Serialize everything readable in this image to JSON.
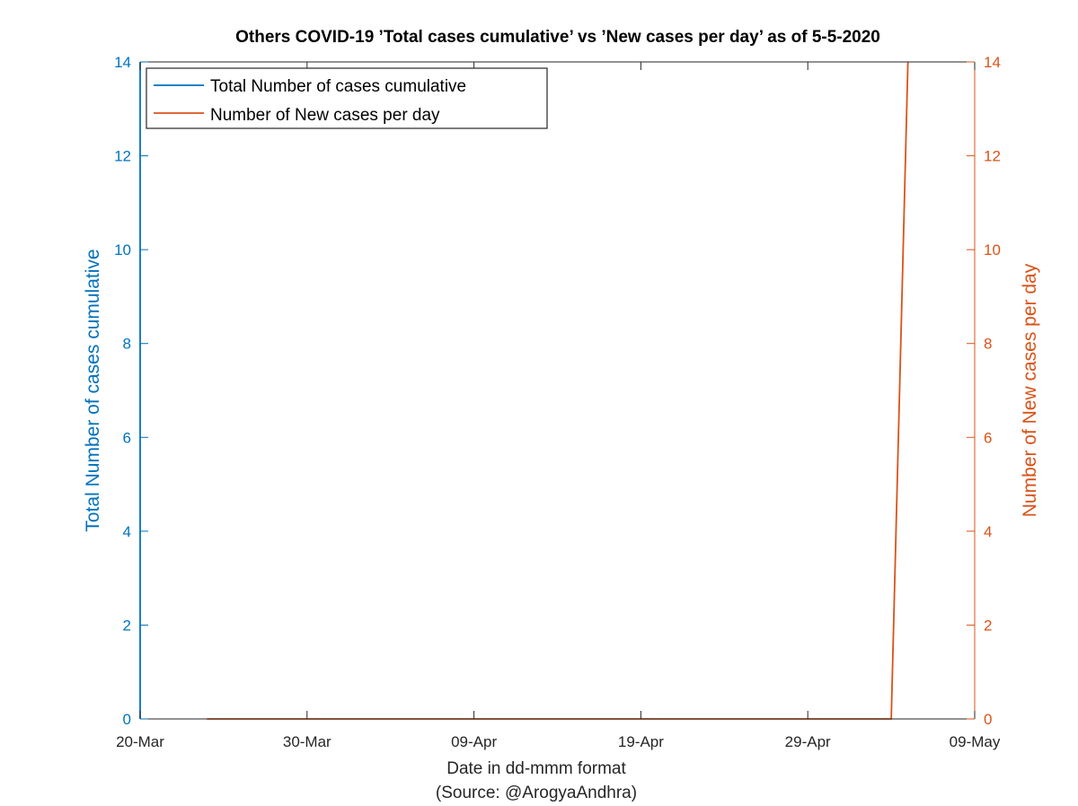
{
  "chart_data": {
    "type": "line",
    "title": "Others COVID-19 ’Total cases cumulative’ vs ’New cases per day’ as of 5-5-2020",
    "xlabel": "Date in dd-mmm format",
    "source_note": "(Source: @ArogyaAndhra)",
    "ylabel_left": "Total Number of cases cumulative",
    "ylabel_right": "Number of New cases per day",
    "x_ticks": [
      "20-Mar",
      "30-Mar",
      "09-Apr",
      "19-Apr",
      "29-Apr",
      "09-May"
    ],
    "xlim": [
      "2020-03-20",
      "2020-05-09"
    ],
    "ylim_left": [
      0,
      14
    ],
    "ylim_right": [
      0,
      14
    ],
    "y_ticks_left": [
      "0",
      "2",
      "4",
      "6",
      "8",
      "10",
      "12",
      "14"
    ],
    "y_ticks_right": [
      "0",
      "2",
      "4",
      "6",
      "8",
      "10",
      "12",
      "14"
    ],
    "legend_placement": "top-left",
    "grid": false,
    "colors": {
      "left_axis": "#0072BD",
      "right_axis": "#D95319",
      "cumulative_line": "#0072BD",
      "new_line": "#D95319"
    },
    "series": [
      {
        "name": "Total Number of cases cumulative",
        "axis": "left",
        "points": [
          {
            "x": "2020-03-20",
            "y": 0
          },
          {
            "x": "2020-03-20",
            "y": 14
          }
        ]
      },
      {
        "name": "Number of New cases per day",
        "axis": "right",
        "points": [
          {
            "x": "2020-03-24",
            "y": 0
          },
          {
            "x": "2020-05-04",
            "y": 0
          },
          {
            "x": "2020-05-05",
            "y": 14
          }
        ]
      }
    ]
  }
}
